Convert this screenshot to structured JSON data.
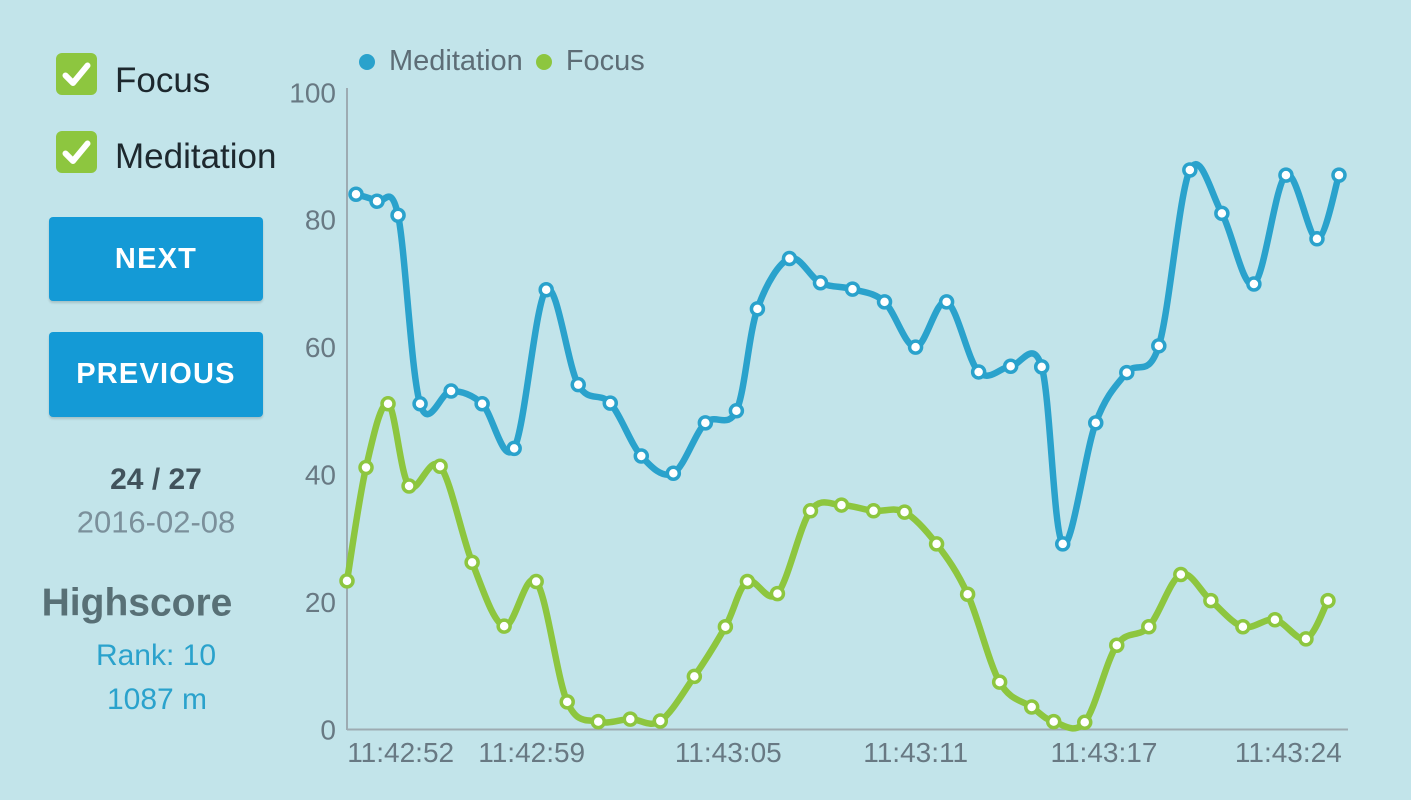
{
  "theme": {
    "background": "#c2e4ea",
    "accent_blue": "#2aa2cc",
    "accent_green": "#8dc63f",
    "button_blue": "#149ad6"
  },
  "sidebar": {
    "checkboxes": [
      {
        "label": "Focus",
        "checked": true
      },
      {
        "label": "Meditation",
        "checked": true
      }
    ],
    "next_label": "NEXT",
    "previous_label": "PREVIOUS",
    "progress": "24 / 27",
    "date": "2016-02-08",
    "highscore_title": "Highscore",
    "rank": "Rank: 10",
    "distance": "1087 m"
  },
  "chart_data": {
    "type": "line",
    "title": "",
    "legend": [
      {
        "label": "Meditation",
        "color": "#2aa2cc"
      },
      {
        "label": "Focus",
        "color": "#8dc63f"
      }
    ],
    "ylim": [
      0,
      100
    ],
    "yticks": [
      0,
      20,
      40,
      60,
      80,
      100
    ],
    "grid": false,
    "legend_position": "top",
    "xticks": [
      {
        "label": "11:42:52",
        "pos_pct": 5.36
      },
      {
        "label": "11:42:59",
        "pos_pct": 18.45
      },
      {
        "label": "11:43:05",
        "pos_pct": 38.09
      },
      {
        "label": "11:43:11",
        "pos_pct": 56.81
      },
      {
        "label": "11:43:17",
        "pos_pct": 75.62
      },
      {
        "label": "11:43:24",
        "pos_pct": 94.04
      }
    ],
    "series": [
      {
        "name": "Focus",
        "color": "#8dc63f",
        "points": [
          [
            0.0,
            23.3
          ],
          [
            1.9,
            41.1
          ],
          [
            4.1,
            51.1
          ],
          [
            6.2,
            38.2
          ],
          [
            9.3,
            41.3
          ],
          [
            12.5,
            26.2
          ],
          [
            15.7,
            16.2
          ],
          [
            18.9,
            23.2
          ],
          [
            22.0,
            4.3
          ],
          [
            25.1,
            1.2
          ],
          [
            28.3,
            1.6
          ],
          [
            31.3,
            1.3
          ],
          [
            34.7,
            8.3
          ],
          [
            37.8,
            16.1
          ],
          [
            40.0,
            23.2
          ],
          [
            43.0,
            21.3
          ],
          [
            46.3,
            34.3
          ],
          [
            49.4,
            35.2
          ],
          [
            52.6,
            34.3
          ],
          [
            55.7,
            34.1
          ],
          [
            58.9,
            29.1
          ],
          [
            62.0,
            21.2
          ],
          [
            65.2,
            7.4
          ],
          [
            68.4,
            3.5
          ],
          [
            70.6,
            1.2
          ],
          [
            73.7,
            1.1
          ],
          [
            76.9,
            13.2
          ],
          [
            80.1,
            16.1
          ],
          [
            83.3,
            24.3
          ],
          [
            86.3,
            20.2
          ],
          [
            89.5,
            16.1
          ],
          [
            92.7,
            17.2
          ],
          [
            95.8,
            14.2
          ],
          [
            98.0,
            20.2
          ]
        ]
      },
      {
        "name": "Meditation",
        "color": "#2aa2cc",
        "points": [
          [
            0.9,
            84
          ],
          [
            3.0,
            82.9
          ],
          [
            5.1,
            80.7
          ],
          [
            7.3,
            51.1
          ],
          [
            10.4,
            53.1
          ],
          [
            13.5,
            51.1
          ],
          [
            16.7,
            44.1
          ],
          [
            19.9,
            69
          ],
          [
            23.1,
            54.1
          ],
          [
            26.3,
            51.2
          ],
          [
            29.4,
            42.9
          ],
          [
            32.6,
            40.2
          ],
          [
            35.8,
            48.1
          ],
          [
            38.9,
            50
          ],
          [
            41.0,
            66
          ],
          [
            44.2,
            73.9
          ],
          [
            47.3,
            70.1
          ],
          [
            50.5,
            69.1
          ],
          [
            53.7,
            67.1
          ],
          [
            56.8,
            60
          ],
          [
            59.9,
            67.1
          ],
          [
            63.1,
            56.1
          ],
          [
            66.3,
            57
          ],
          [
            69.4,
            56.9
          ],
          [
            71.5,
            29.1
          ],
          [
            74.8,
            48.1
          ],
          [
            77.9,
            56
          ],
          [
            81.1,
            60.2
          ],
          [
            84.2,
            87.8
          ],
          [
            87.4,
            81
          ],
          [
            90.6,
            69.9
          ],
          [
            93.8,
            87
          ],
          [
            96.9,
            77
          ],
          [
            99.1,
            87
          ]
        ]
      }
    ]
  }
}
